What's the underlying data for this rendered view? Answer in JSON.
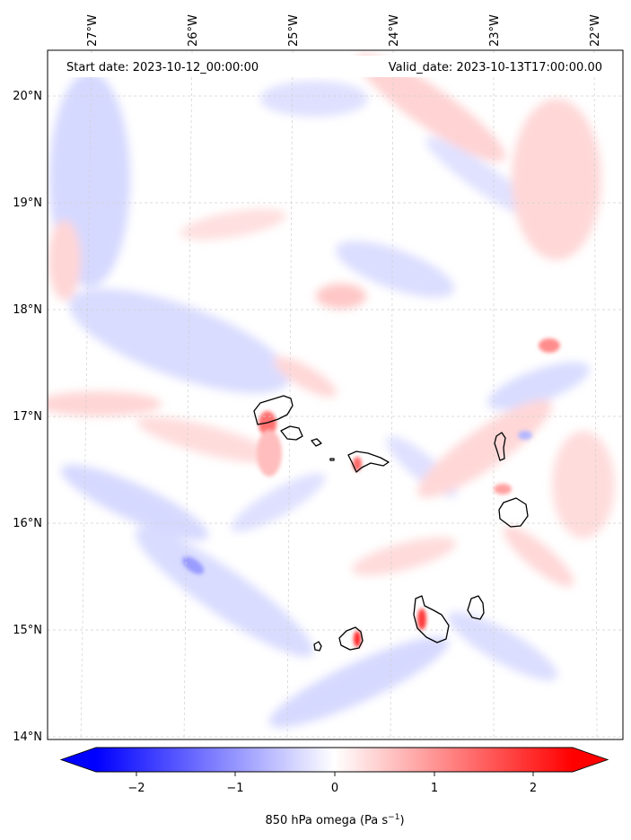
{
  "header": {
    "start_date": "Start date: 2023-10-12_00:00:00",
    "valid_date": "Valid_date: 2023-10-13T17:00:00.00"
  },
  "map": {
    "lon_labels": [
      "27°W",
      "26°W",
      "25°W",
      "24°W",
      "23°W",
      "22°W"
    ],
    "lat_labels": [
      "20°N",
      "19°N",
      "18°N",
      "17°N",
      "16°N",
      "15°N",
      "14°N"
    ],
    "gridlines": "dashed"
  },
  "colorbar": {
    "tick_labels": [
      "−2",
      "−1",
      "0",
      "1",
      "2"
    ],
    "label": "850 hPa omega (Pa s",
    "label_sup": "−1",
    "label_end": ")",
    "colormap": "bwr",
    "range": [
      -2.6,
      2.6
    ],
    "extend": "both",
    "colors": {
      "neg": "#0000ff",
      "mid": "#ffffff",
      "pos": "#ff0000"
    }
  },
  "islands": [
    "Santo Antão",
    "São Vicente",
    "Santa Luzia",
    "São Nicolau",
    "Sal",
    "Boa Vista",
    "Maio",
    "Santiago",
    "Fogo",
    "Brava"
  ]
}
